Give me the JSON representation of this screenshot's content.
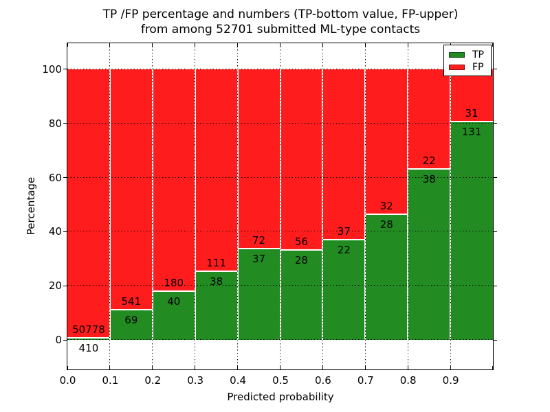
{
  "title_line1": "TP /FP percentage and numbers (TP-bottom value, FP-upper)",
  "title_line2": "from among 52701 submitted ML-type contacts",
  "chart_data": {
    "type": "bar",
    "stacked": true,
    "normalized_to_100_percent": true,
    "title": "TP /FP percentage and numbers (TP-bottom value, FP-upper) from among 52701 submitted ML-type contacts",
    "xlabel": "Predicted probability",
    "ylabel": "Percentage",
    "total_contacts": 52701,
    "categories": [
      "0.0",
      "0.1",
      "0.2",
      "0.3",
      "0.4",
      "0.5",
      "0.6",
      "0.7",
      "0.8",
      "0.9"
    ],
    "x_tick_labels": [
      "0.0",
      "0.1",
      "0.2",
      "0.3",
      "0.4",
      "0.5",
      "0.6",
      "0.7",
      "0.8",
      "0.9"
    ],
    "y_tick_labels": [
      "0",
      "20",
      "40",
      "60",
      "80",
      "100"
    ],
    "y_tick_values": [
      0,
      20,
      40,
      60,
      80,
      100
    ],
    "xlim": [
      0.0,
      1.0
    ],
    "ylim": [
      -11,
      109.5
    ],
    "grid": "dotted",
    "legend_position": "upper right",
    "series": [
      {
        "name": "TP",
        "color": "#228b22",
        "values": [
          410,
          69,
          40,
          38,
          37,
          28,
          22,
          28,
          38,
          131
        ]
      },
      {
        "name": "FP",
        "color": "#ff1c1c",
        "values": [
          50778,
          541,
          180,
          111,
          72,
          56,
          37,
          32,
          22,
          31
        ]
      }
    ]
  },
  "legend": {
    "items": [
      {
        "label": "TP",
        "color": "#228b22"
      },
      {
        "label": "FP",
        "color": "#ff1c1c"
      }
    ]
  },
  "colors": {
    "tp": "#228b22",
    "fp": "#ff1c1c",
    "grid": "#000000",
    "background": "#ffffff"
  }
}
